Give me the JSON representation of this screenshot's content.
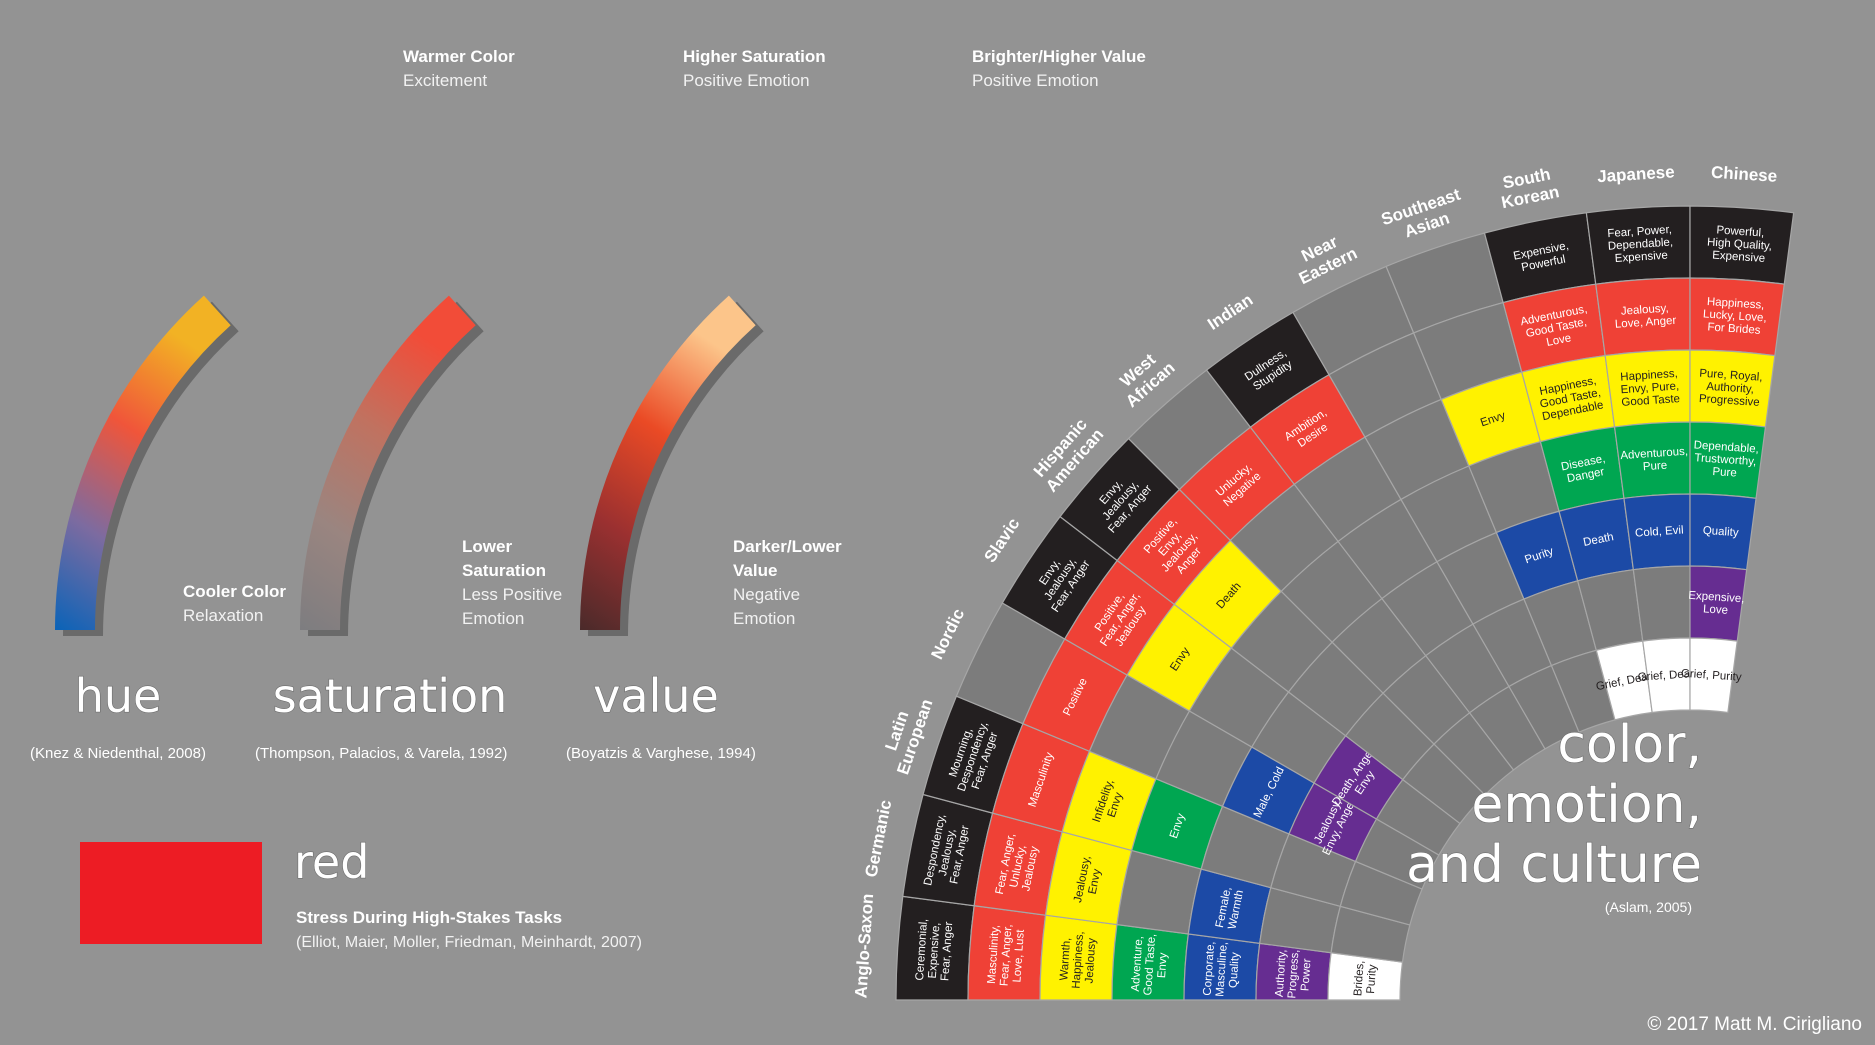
{
  "colors": {
    "background": "#939393",
    "black": "#231f20",
    "red": "#ef4136",
    "yellow": "#fff200",
    "green": "#00a651",
    "blue": "#1c4aa6",
    "purple": "#662d91",
    "white": "#ffffff",
    "gray": "#7c7c7c",
    "swatch_red": "#ed1c24"
  },
  "gradient_arcs": [
    {
      "id": "hue",
      "top_label": "Warmer Color",
      "top_sub": "Excitement",
      "bottom_label": "Cooler Color",
      "bottom_sub": "Relaxation",
      "title": "hue",
      "citation": "(Knez & Niedenthal, 2008)",
      "stops": [
        "#0a63b8",
        "#7d6ba0",
        "#f0553a",
        "#f2b224"
      ]
    },
    {
      "id": "saturation",
      "top_label": "Higher Saturation",
      "top_sub": "Positive Emotion",
      "bottom_label": "Lower Saturation",
      "bottom_sub": "Less Positive Emotion",
      "title": "saturation",
      "citation": "(Thompson, Palacios,  & Varela, 1992)",
      "stops": [
        "#7d7d80",
        "#9a8580",
        "#c07260",
        "#f24c38"
      ]
    },
    {
      "id": "value",
      "top_label": "Brighter/Higher Value",
      "top_sub": "Positive Emotion",
      "bottom_label": "Darker/Lower Value",
      "bottom_sub": "Negative Emotion",
      "title": "value",
      "citation": "(Boyatzis & Varghese, 1994)",
      "stops": [
        "#4a2a2a",
        "#9a3030",
        "#ea4a25",
        "#fcc58a"
      ]
    }
  ],
  "red_note": {
    "title": "red",
    "subtitle": "Stress During High-Stakes Tasks",
    "citation": "(Elliot, Maier, Moller, Friedman, Meinhardt, 2007)"
  },
  "culture_title": {
    "lines": [
      "color,",
      "emotion,",
      "and culture"
    ],
    "citation": "(Aslam, 2005)"
  },
  "copyright": "© 2017 Matt M. Cirigliano",
  "ring_color_order": [
    "black",
    "red",
    "yellow",
    "green",
    "blue",
    "purple",
    "white"
  ],
  "cultures": [
    {
      "name": "Anglo-Saxon",
      "cells": {
        "black": "Ceremonial, Expensive, Fear, Anger",
        "red": "Masculinity, Fear, Anger, Love, Lust",
        "yellow": "Warmth, Happiness, Jealousy",
        "green": "Adventure, Good Taste, Envy",
        "blue": "Corporate, Masculine, Quality",
        "purple": "Authority, Progress, Power",
        "white": "Brides, Purity"
      }
    },
    {
      "name": "Germanic",
      "cells": {
        "black": "Despondency, Jealousy, Fear, Anger",
        "red": "Fear, Anger, Unlucky, Jealousy",
        "yellow": "Jealousy, Envy",
        "blue": "Female, Warmth"
      }
    },
    {
      "name": "Latin European",
      "cells": {
        "black": "Mourning, Despondency, Fear, Anger",
        "red": "Masculinity",
        "yellow": "Infidelity, Envy",
        "green": "Envy"
      }
    },
    {
      "name": "Nordic",
      "cells": {
        "red": "Positive",
        "blue": "Male, Cold",
        "purple": "Jealousy, Envy, Anger"
      }
    },
    {
      "name": "Slavic",
      "cells": {
        "black": "Envy, Jealousy, Fear, Anger",
        "red": "Positive, Fear, Anger, Jealousy",
        "yellow": "Envy",
        "purple": "Death, Anger, Envy"
      }
    },
    {
      "name": "Hispanic American",
      "cells": {
        "black": "Envy, Jealousy, Fear, Anger",
        "red": "Positive, Envy, Jealousy, Anger",
        "yellow": "Death"
      }
    },
    {
      "name": "West African",
      "cells": {
        "red": "Unlucky, Negative"
      }
    },
    {
      "name": "Indian",
      "cells": {
        "black": "Dullness, Stupidity",
        "red": "Ambition, Desire"
      }
    },
    {
      "name": "Near Eastern",
      "cells": {}
    },
    {
      "name": "Southeast Asian",
      "cells": {
        "yellow": "Envy",
        "blue": "Purity"
      }
    },
    {
      "name": "South Korean",
      "cells": {
        "black": "Expensive, Powerful",
        "red": "Adventurous, Good Taste, Love",
        "yellow": "Happiness, Good Taste, Dependable",
        "green": "Disease, Danger",
        "blue": "Death",
        "white": "Grief, Death"
      }
    },
    {
      "name": "Japanese",
      "cells": {
        "black": "Fear, Power, Dependable, Expensive",
        "red": "Jealousy, Love, Anger",
        "yellow": "Happiness, Envy, Pure, Good Taste",
        "green": "Adventurous, Pure",
        "blue": "Cold, Evil",
        "white": "Grief, Death"
      }
    },
    {
      "name": "Chinese",
      "cells": {
        "black": "Powerful, High Quality, Expensive",
        "red": "Happiness, Lucky, Love, For Brides",
        "yellow": "Pure, Royal, Authority, Progressive",
        "green": "Dependable, Trustworthy, Pure",
        "blue": "Quality",
        "purple": "Expensive, Love",
        "white": "Grief, Purity"
      }
    }
  ]
}
